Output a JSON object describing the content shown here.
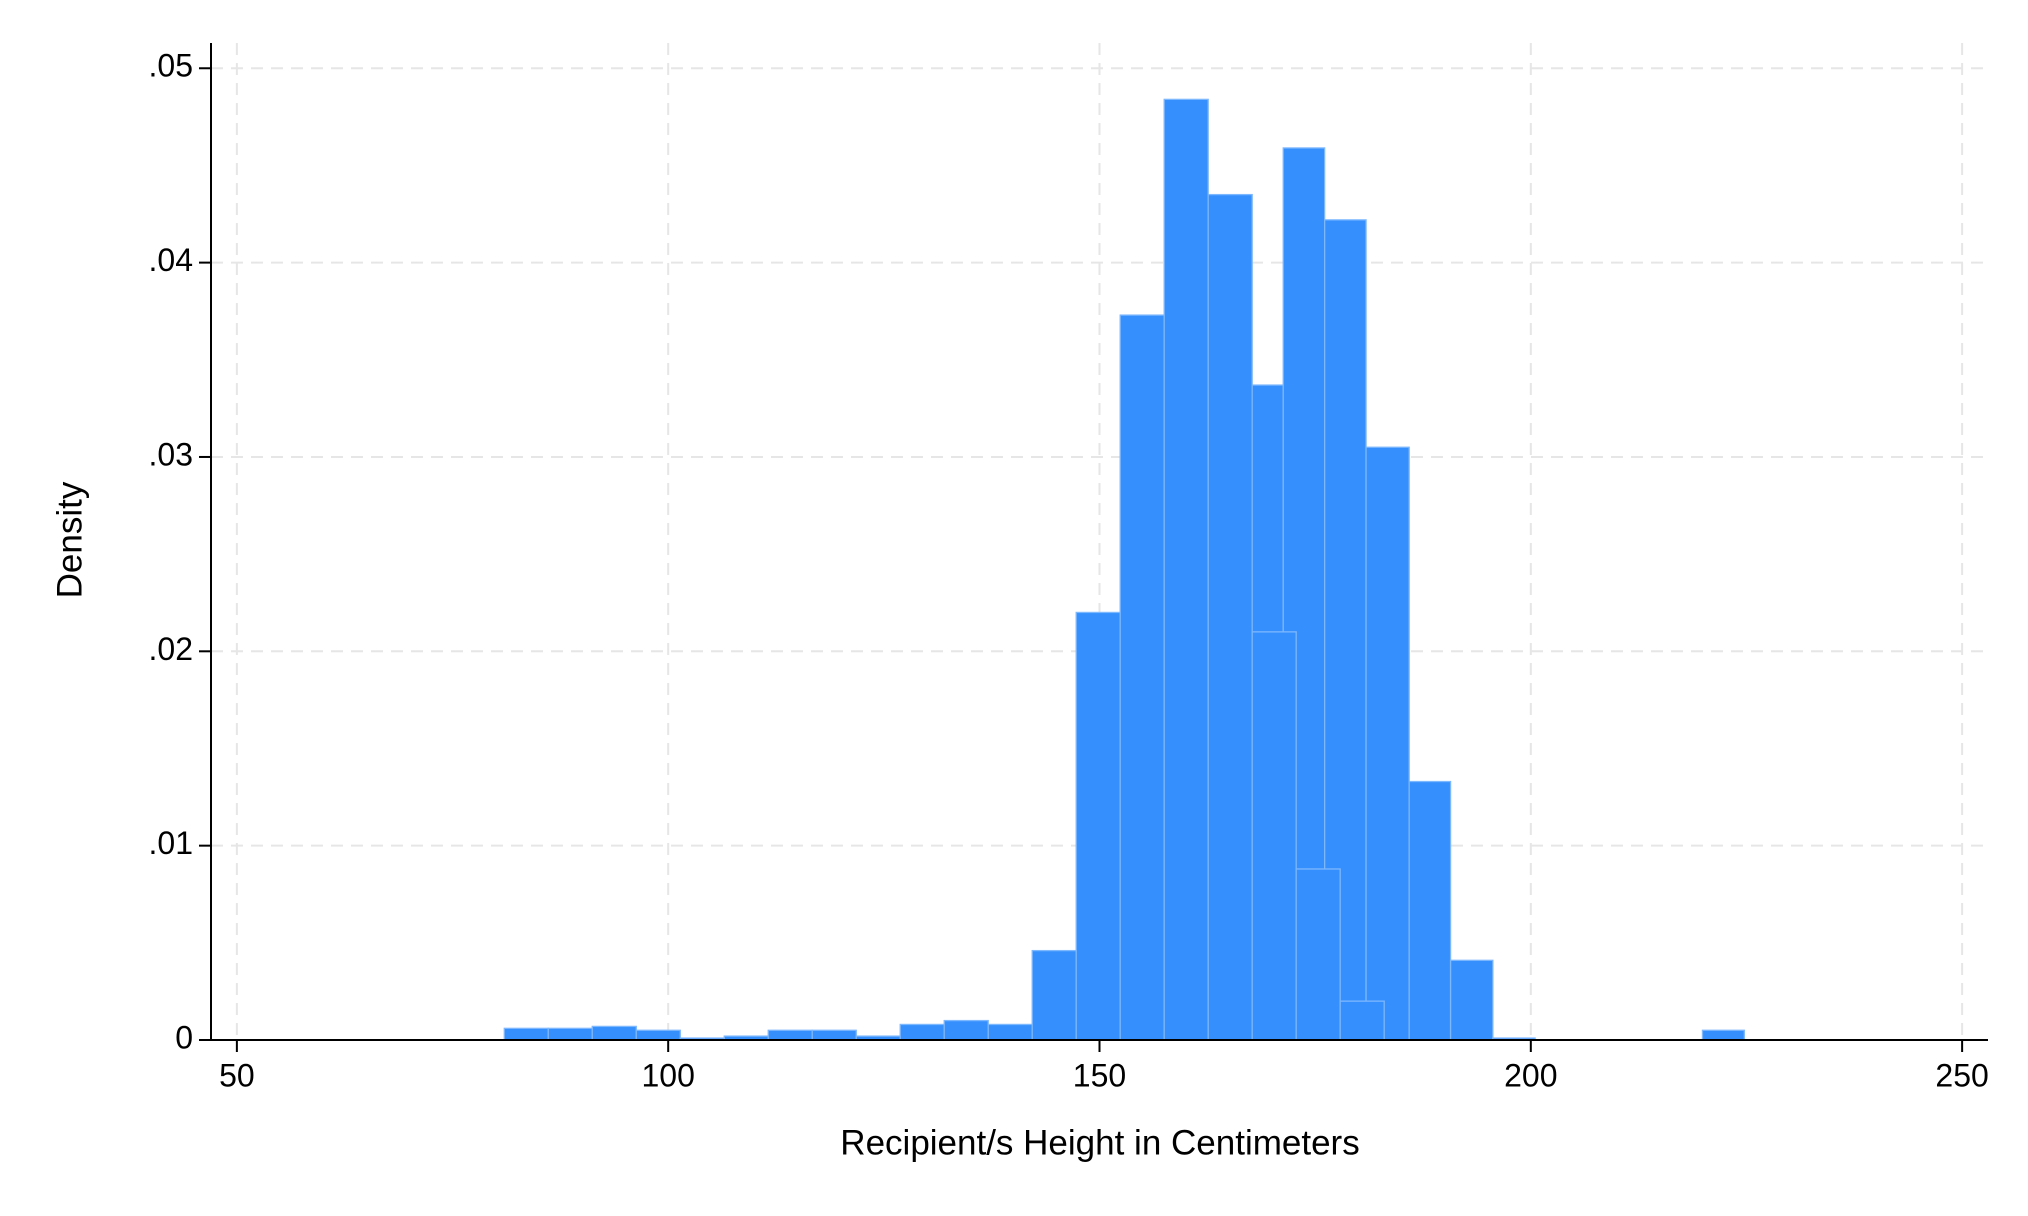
{
  "chart_data": {
    "type": "histogram",
    "x_label": "Recipient/s Height in Centimeters",
    "y_label": "Density",
    "series": [
      {
        "color": "#3590fd",
        "bins": [
          166.5,
          171.3,
          176.1,
          180.9,
          185.9,
          190.7,
          195.6,
          200.5,
          205.35,
          210.2,
          215.05,
          219.9,
          224.75
        ],
        "values": [
          0.0337,
          0.0459,
          0.0422,
          0.0305,
          0.0133,
          0.0041,
          0.0001,
          0,
          0,
          0,
          0,
          0.0005
        ]
      },
      {
        "color": "#3590fd",
        "bins": [
          81.0,
          86.1,
          91.2,
          96.3,
          101.4,
          106.5,
          111.6,
          116.7,
          121.8,
          126.9,
          132.0,
          137.1,
          142.2,
          147.3,
          152.4,
          157.5,
          162.6,
          167.7,
          172.8,
          177.9,
          183.0
        ],
        "values": [
          0.0006,
          0.0006,
          0.0007,
          0.0005,
          0.0001,
          0.0002,
          0.0005,
          0.0005,
          0.0002,
          0.0008,
          0.001,
          0.0008,
          0.0046,
          0.022,
          0.0373,
          0.0484,
          0.0435,
          0.021,
          0.0088,
          0.002
        ]
      }
    ],
    "xlim": [
      47,
      253
    ],
    "ylim": [
      0,
      0.0513
    ],
    "xticks": [
      50,
      100,
      150,
      200,
      250
    ],
    "yticks": [
      0,
      {
        "value": 0.01,
        "label": ".01"
      },
      {
        "value": 0.02,
        "label": ".02"
      },
      {
        "value": 0.03,
        "label": ".03"
      },
      {
        "value": 0.04,
        "label": ".04"
      },
      {
        "value": 0.05,
        "label": ".05"
      }
    ],
    "grid": true
  }
}
